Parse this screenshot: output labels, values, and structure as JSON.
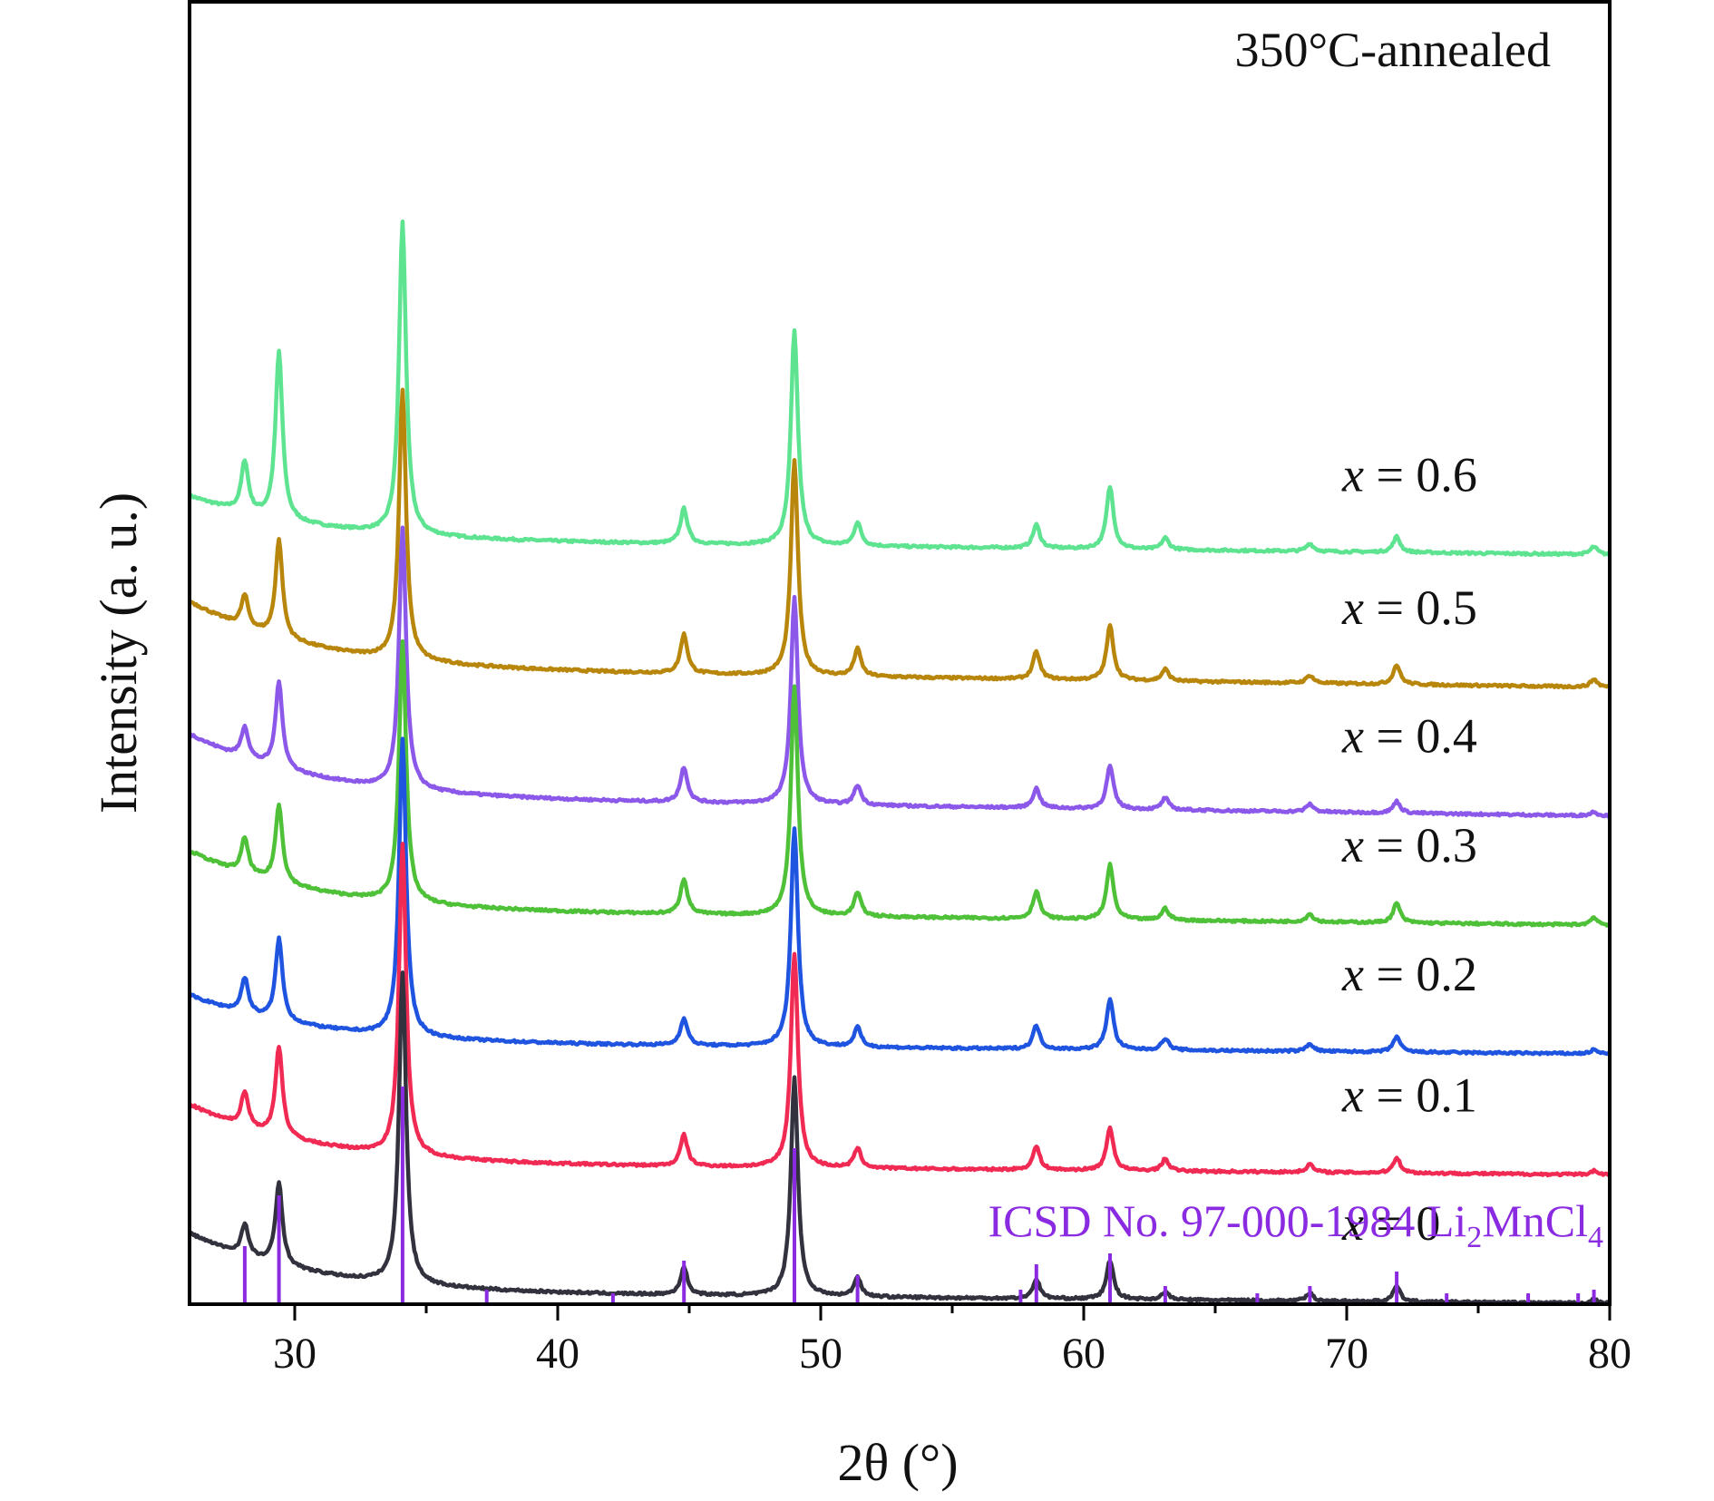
{
  "chart_data": {
    "type": "line",
    "annotation": "350°C-annealed",
    "xlabel": "2θ (°)",
    "ylabel": "Intensity (a. u.)",
    "xlim": [
      26,
      80
    ],
    "x_ticks": [
      30,
      40,
      50,
      60,
      70,
      80
    ],
    "x_minor_step": 5,
    "y_ticks": "none",
    "grid": false,
    "legend": "none",
    "stacked_offset": true,
    "series": [
      {
        "label_var": "x",
        "label_eq": " = 0.6",
        "color": "#5ee391",
        "baseline": 1.62,
        "start_level": 1.73,
        "decay_width": 4.5,
        "tail_drop": 0.04,
        "peaks": [
          [
            28.1,
            0.13
          ],
          [
            29.4,
            0.43
          ],
          [
            34.1,
            0.8
          ],
          [
            44.8,
            0.09
          ],
          [
            49.0,
            0.55
          ],
          [
            51.4,
            0.06
          ],
          [
            58.2,
            0.06
          ],
          [
            61.0,
            0.16
          ],
          [
            63.1,
            0.03
          ],
          [
            68.6,
            0.02
          ],
          [
            71.9,
            0.04
          ],
          [
            79.4,
            0.02
          ]
        ]
      },
      {
        "label_var": "x",
        "label_eq": " = 0.5",
        "color": "#b8860b",
        "baseline": 1.29,
        "start_level": 1.46,
        "decay_width": 4.5,
        "tail_drop": 0.05,
        "peaks": [
          [
            28.1,
            0.08
          ],
          [
            29.4,
            0.25
          ],
          [
            34.1,
            0.69
          ],
          [
            44.8,
            0.1
          ],
          [
            49.0,
            0.55
          ],
          [
            51.4,
            0.07
          ],
          [
            58.2,
            0.07
          ],
          [
            61.0,
            0.14
          ],
          [
            63.1,
            0.03
          ],
          [
            68.6,
            0.02
          ],
          [
            71.9,
            0.05
          ],
          [
            79.4,
            0.02
          ]
        ]
      },
      {
        "label_var": "x",
        "label_eq": " = 0.4",
        "color": "#8b58ea",
        "baseline": 0.96,
        "start_level": 1.12,
        "decay_width": 4.5,
        "tail_drop": 0.05,
        "peaks": [
          [
            28.1,
            0.08
          ],
          [
            29.4,
            0.22
          ],
          [
            34.1,
            0.67
          ],
          [
            44.8,
            0.09
          ],
          [
            49.0,
            0.53
          ],
          [
            51.4,
            0.05
          ],
          [
            58.2,
            0.05
          ],
          [
            61.0,
            0.11
          ],
          [
            63.1,
            0.03
          ],
          [
            68.6,
            0.02
          ],
          [
            71.9,
            0.03
          ],
          [
            79.4,
            0.01
          ]
        ]
      },
      {
        "label_var": "x",
        "label_eq": " = 0.3",
        "color": "#4fc138",
        "baseline": 0.67,
        "start_level": 0.82,
        "decay_width": 4.5,
        "tail_drop": 0.04,
        "peaks": [
          [
            28.1,
            0.09
          ],
          [
            29.4,
            0.2
          ],
          [
            34.1,
            0.67
          ],
          [
            44.8,
            0.09
          ],
          [
            49.0,
            0.59
          ],
          [
            51.4,
            0.06
          ],
          [
            58.2,
            0.07
          ],
          [
            61.0,
            0.14
          ],
          [
            63.1,
            0.03
          ],
          [
            68.6,
            0.02
          ],
          [
            71.9,
            0.05
          ],
          [
            79.4,
            0.02
          ]
        ]
      },
      {
        "label_var": "x",
        "label_eq": " = 0.2",
        "color": "#1f54e0",
        "baseline": 0.33,
        "start_level": 0.45,
        "decay_width": 4.5,
        "tail_drop": 0.03,
        "peaks": [
          [
            28.1,
            0.09
          ],
          [
            29.4,
            0.21
          ],
          [
            34.1,
            0.76
          ],
          [
            44.8,
            0.07
          ],
          [
            49.0,
            0.56
          ],
          [
            51.4,
            0.05
          ],
          [
            58.2,
            0.06
          ],
          [
            61.0,
            0.13
          ],
          [
            63.1,
            0.03
          ],
          [
            68.6,
            0.02
          ],
          [
            71.9,
            0.04
          ],
          [
            79.4,
            0.01
          ]
        ]
      },
      {
        "label_var": "x",
        "label_eq": " = 0.1",
        "color": "#f02a52",
        "baseline": 0.02,
        "start_level": 0.17,
        "decay_width": 4.5,
        "tail_drop": 0.03,
        "peaks": [
          [
            28.1,
            0.09
          ],
          [
            29.4,
            0.23
          ],
          [
            34.1,
            0.8
          ],
          [
            44.8,
            0.08
          ],
          [
            49.0,
            0.55
          ],
          [
            51.4,
            0.05
          ],
          [
            58.2,
            0.06
          ],
          [
            61.0,
            0.11
          ],
          [
            63.1,
            0.03
          ],
          [
            68.6,
            0.02
          ],
          [
            71.9,
            0.04
          ],
          [
            79.4,
            0.01
          ]
        ]
      },
      {
        "label_var": "x",
        "label_eq": " = 0",
        "color": "#32323e",
        "baseline": -0.31,
        "start_level": -0.16,
        "decay_width": 4.5,
        "tail_drop": 0.03,
        "peaks": [
          [
            28.1,
            0.08
          ],
          [
            29.4,
            0.21
          ],
          [
            34.1,
            0.8
          ],
          [
            44.8,
            0.07
          ],
          [
            49.0,
            0.56
          ],
          [
            51.4,
            0.05
          ],
          [
            58.2,
            0.05
          ],
          [
            61.0,
            0.1
          ],
          [
            63.1,
            0.02
          ],
          [
            68.6,
            0.02
          ],
          [
            71.9,
            0.04
          ],
          [
            79.4,
            0.01
          ]
        ]
      }
    ],
    "reference": {
      "label_main": "ICSD No. 97-000-1984 Li",
      "sub1": "2",
      "mid": "MnCl",
      "sub2": "4",
      "color": "#8a2be2",
      "sticks": [
        [
          28.1,
          0.16
        ],
        [
          29.4,
          0.3
        ],
        [
          34.1,
          0.6
        ],
        [
          37.3,
          0.04
        ],
        [
          42.1,
          0.03
        ],
        [
          44.8,
          0.12
        ],
        [
          49.0,
          0.43
        ],
        [
          51.4,
          0.08
        ],
        [
          57.6,
          0.04
        ],
        [
          58.2,
          0.11
        ],
        [
          61.0,
          0.14
        ],
        [
          63.1,
          0.05
        ],
        [
          66.6,
          0.03
        ],
        [
          68.6,
          0.05
        ],
        [
          71.9,
          0.09
        ],
        [
          73.8,
          0.03
        ],
        [
          76.9,
          0.03
        ],
        [
          78.8,
          0.03
        ],
        [
          79.4,
          0.04
        ]
      ]
    }
  }
}
